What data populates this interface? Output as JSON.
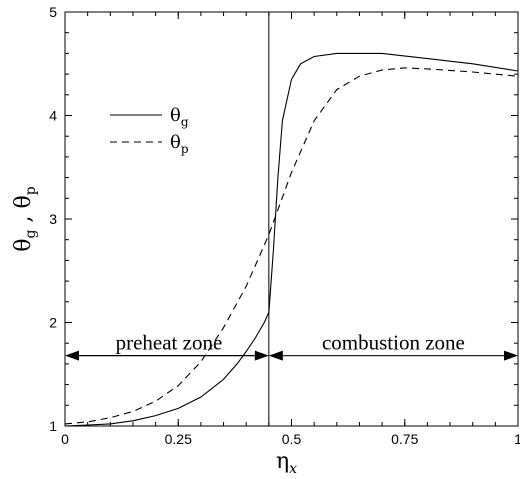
{
  "chart_data": {
    "type": "line",
    "x_axis": {
      "label_main": "η",
      "label_sub": "x",
      "range": [
        0,
        1
      ],
      "ticks": [
        0,
        0.25,
        0.5,
        0.75,
        1
      ],
      "tick_labels": [
        "0",
        "0.25",
        "0.5",
        "0.75",
        "1"
      ]
    },
    "y_axis": {
      "label": "θ_g , θ_p",
      "label_parts": [
        "θ",
        "g",
        " , ",
        "θ",
        "p"
      ],
      "range": [
        1,
        5
      ],
      "ticks": [
        1,
        2,
        3,
        4,
        5
      ],
      "tick_labels": [
        "1",
        "2",
        "3",
        "4",
        "5"
      ]
    },
    "series": [
      {
        "name": "θg",
        "name_main": "θ",
        "name_sub": "g",
        "style": "solid",
        "x": [
          0,
          0.05,
          0.1,
          0.15,
          0.2,
          0.25,
          0.3,
          0.35,
          0.38,
          0.4,
          0.42,
          0.44,
          0.45,
          0.46,
          0.47,
          0.48,
          0.5,
          0.52,
          0.55,
          0.6,
          0.7,
          0.8,
          0.9,
          1.0
        ],
        "y": [
          1.0,
          1.01,
          1.02,
          1.05,
          1.1,
          1.17,
          1.28,
          1.45,
          1.6,
          1.72,
          1.85,
          2.0,
          2.1,
          2.7,
          3.4,
          3.95,
          4.35,
          4.5,
          4.57,
          4.6,
          4.6,
          4.55,
          4.5,
          4.43
        ]
      },
      {
        "name": "θp",
        "name_main": "θ",
        "name_sub": "p",
        "style": "dashed",
        "x": [
          0,
          0.05,
          0.1,
          0.15,
          0.2,
          0.25,
          0.3,
          0.35,
          0.4,
          0.45,
          0.5,
          0.55,
          0.6,
          0.65,
          0.7,
          0.75,
          0.8,
          0.9,
          1.0
        ],
        "y": [
          1.02,
          1.04,
          1.08,
          1.14,
          1.24,
          1.39,
          1.62,
          1.95,
          2.35,
          2.85,
          3.45,
          3.95,
          4.25,
          4.38,
          4.44,
          4.46,
          4.45,
          4.42,
          4.38
        ]
      }
    ],
    "annotations": {
      "divider_x": 0.45,
      "arrow_y": 1.68,
      "preheat_label": "preheat zone",
      "combustion_label": "combustion zone"
    },
    "legend_position": "top-left",
    "grid": false
  }
}
